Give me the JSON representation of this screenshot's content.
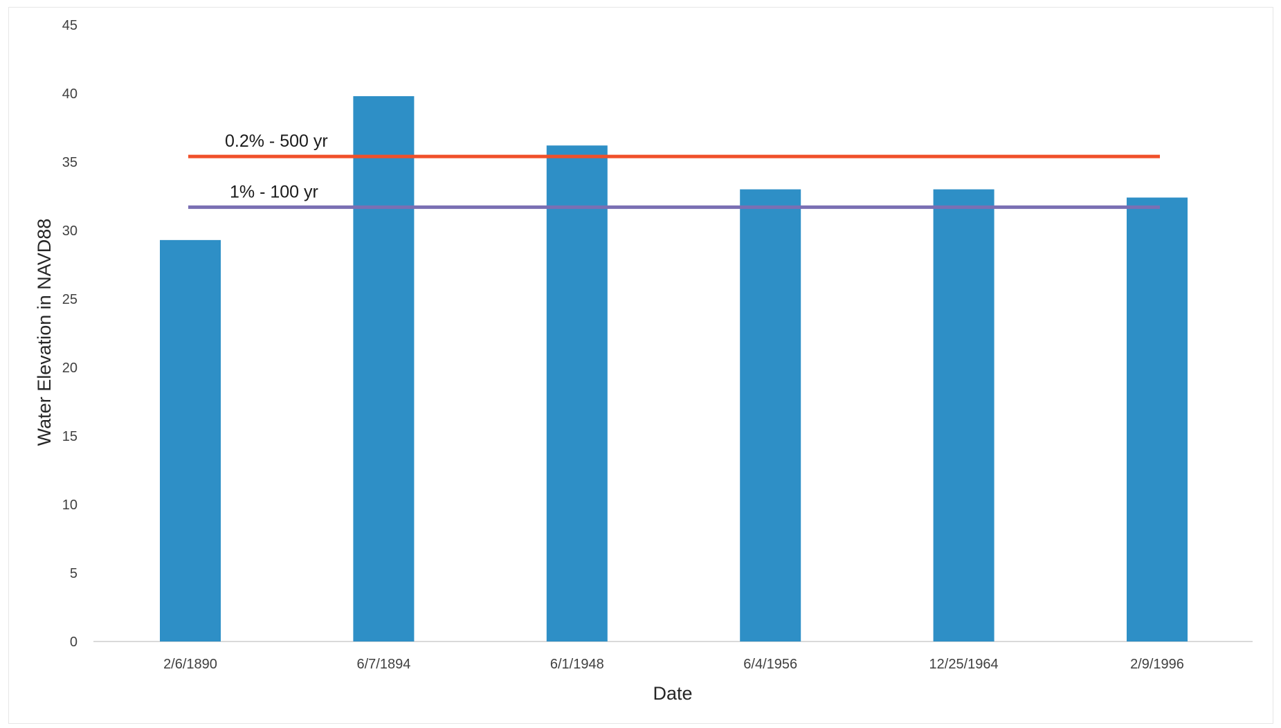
{
  "chart_data": {
    "type": "bar",
    "categories": [
      "2/6/1890",
      "6/7/1894",
      "6/1/1948",
      "6/4/1956",
      "12/25/1964",
      "2/9/1996"
    ],
    "values": [
      29.3,
      39.8,
      36.2,
      33.0,
      33.0,
      32.4
    ],
    "title": "",
    "xlabel": "Date",
    "ylabel": "Water Elevation in NAVD88",
    "ylim": [
      0,
      45
    ],
    "yticks": [
      "0",
      "5",
      "10",
      "15",
      "20",
      "25",
      "30",
      "35",
      "40",
      "45"
    ],
    "grid": false,
    "bar_color": "#2e8fc6",
    "reference_lines": [
      {
        "label": "0.2% - 500 yr",
        "value": 35.4,
        "color": "#f0502a"
      },
      {
        "label": "1% - 100 yr",
        "value": 31.7,
        "color": "#7a6fb3"
      }
    ]
  }
}
